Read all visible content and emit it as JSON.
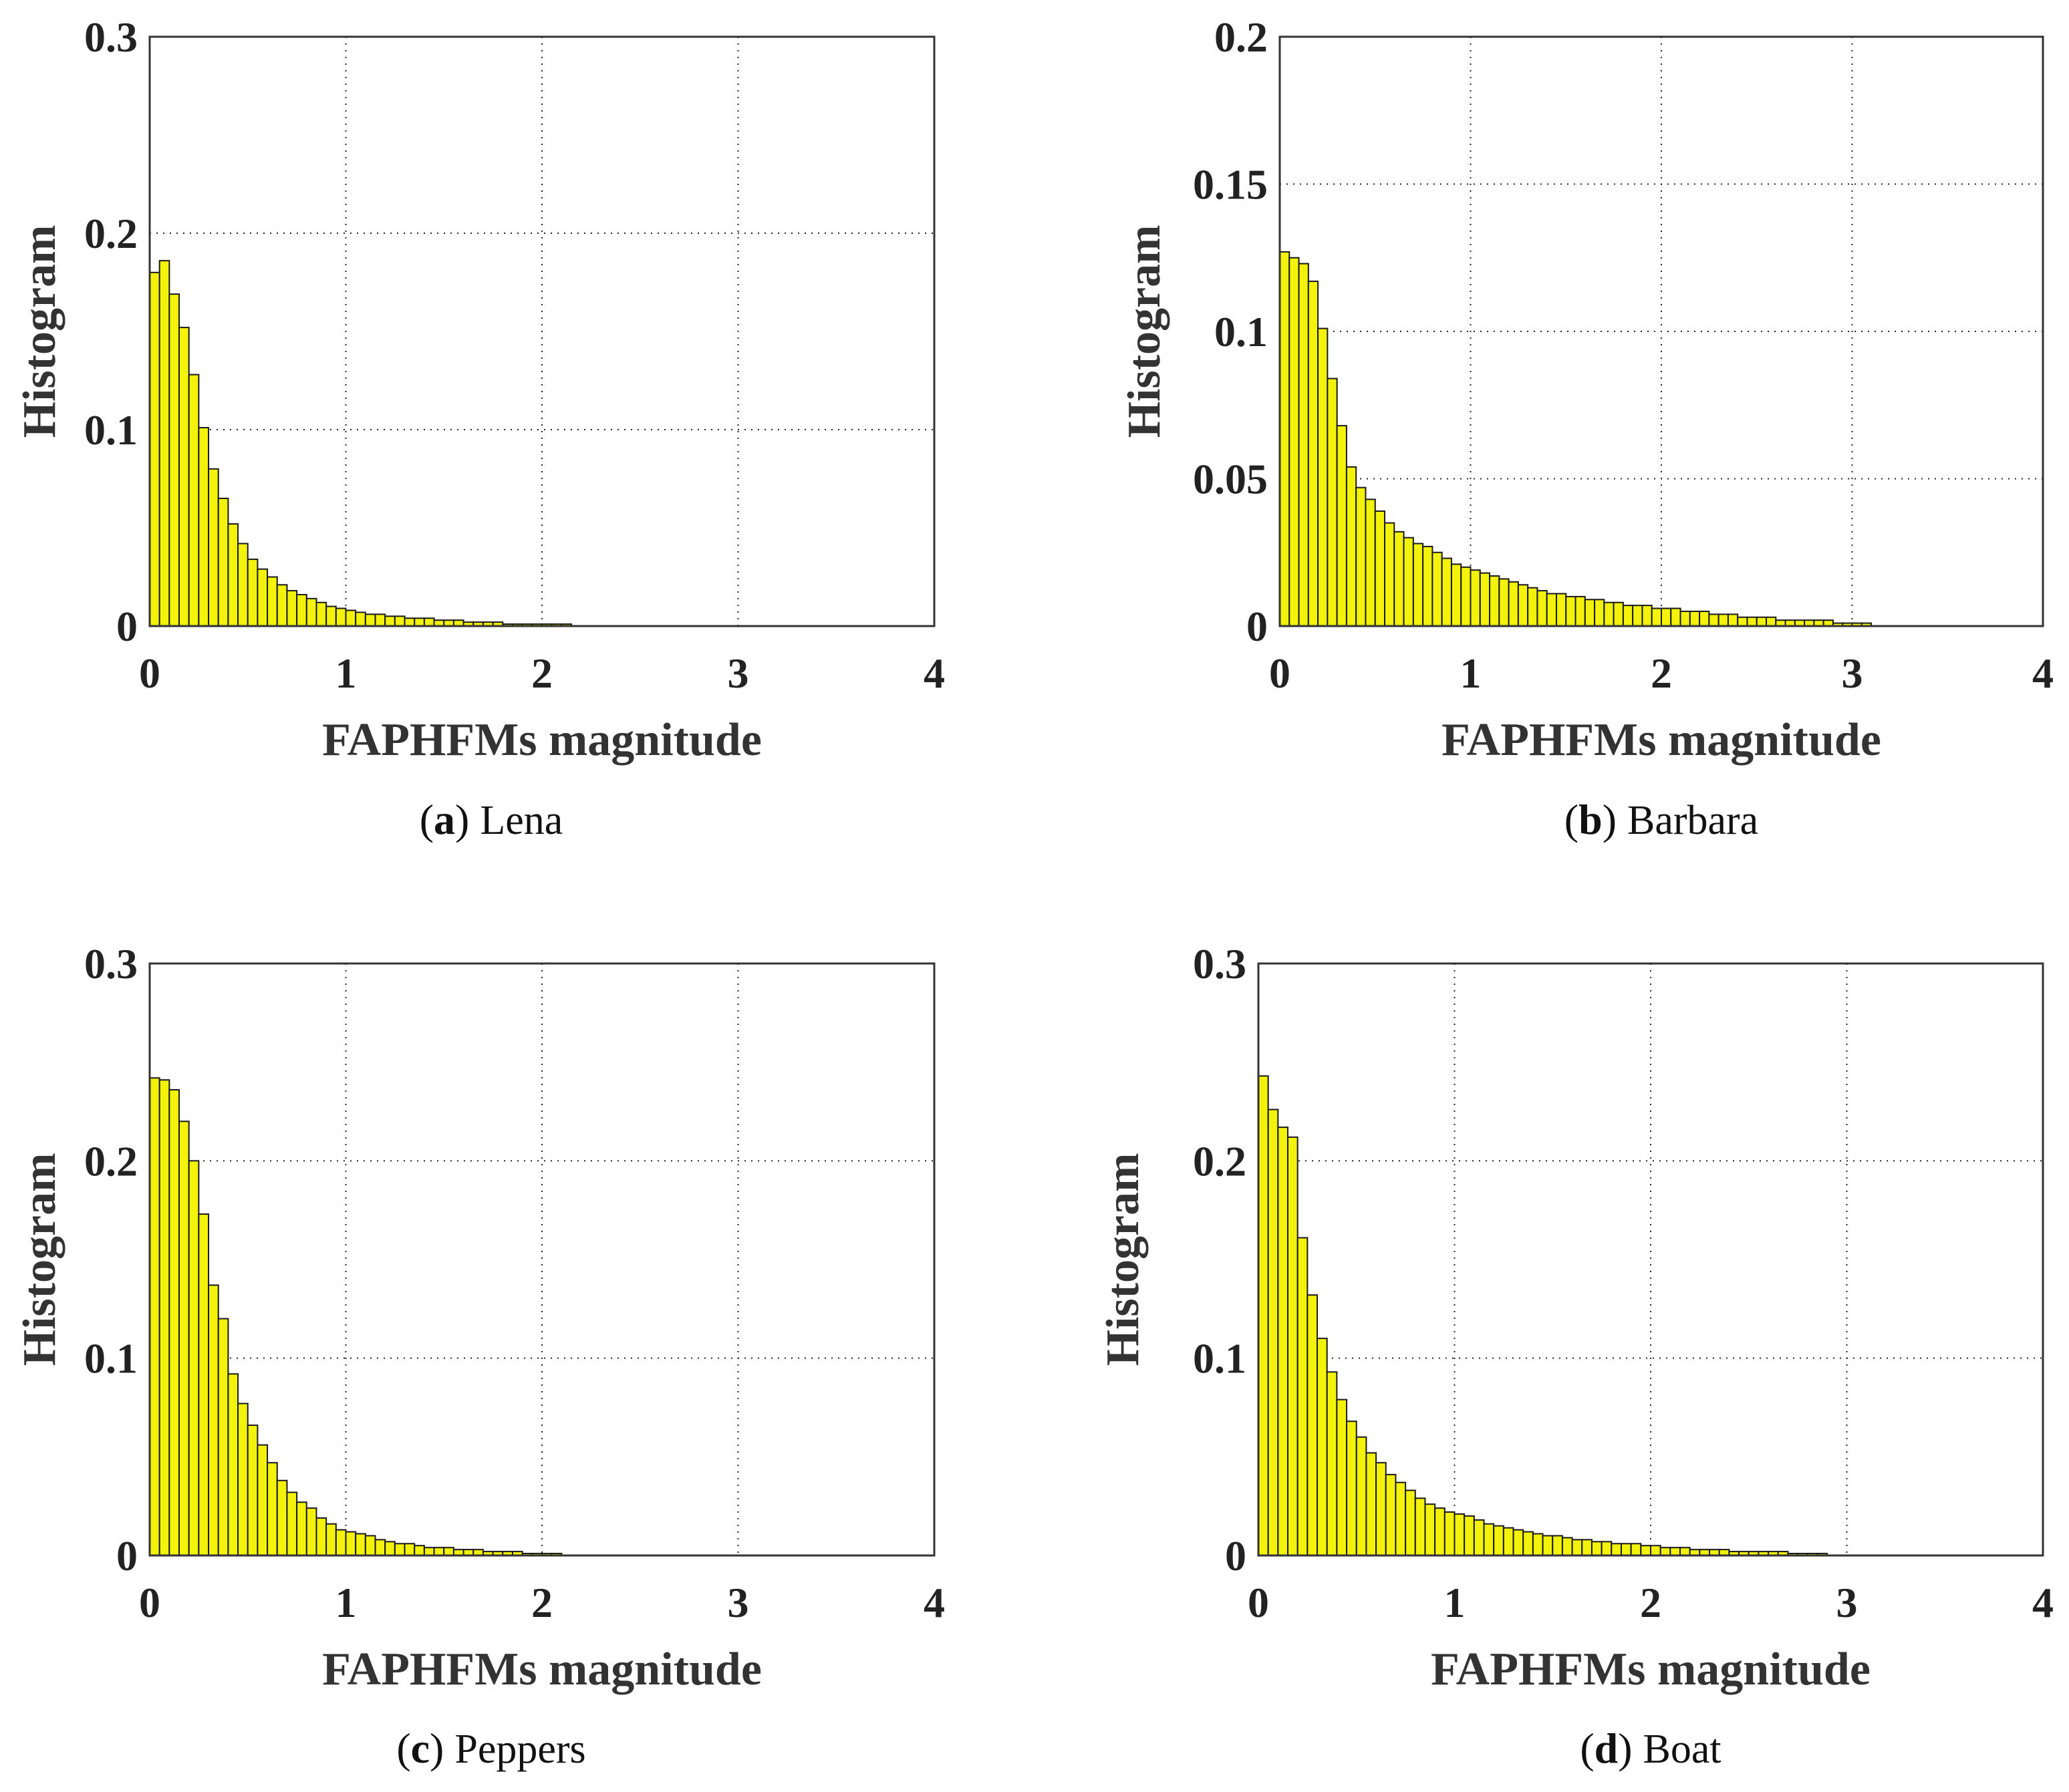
{
  "figure": {
    "colors": {
      "bar_fill": "#f2f20a",
      "bar_stroke": "#1a1a1a",
      "axis": "#333333",
      "grid": "#222222"
    }
  },
  "chart_data": [
    {
      "type": "bar",
      "panel": "a",
      "caption_letter": "a",
      "caption_name": "Lena",
      "xlabel": "FAPHFMs magnitude",
      "ylabel": "Histogram",
      "xlim": [
        0,
        4
      ],
      "ylim": [
        0,
        0.3
      ],
      "xticks": [
        "0",
        "1",
        "2",
        "3",
        "4"
      ],
      "yticks": [
        "0",
        "0.1",
        "0.2",
        "0.3"
      ],
      "ytick_values": [
        0,
        0.1,
        0.2,
        0.3
      ],
      "grid": true,
      "bin_width": 0.05,
      "values": [
        0.18,
        0.186,
        0.169,
        0.152,
        0.128,
        0.101,
        0.08,
        0.065,
        0.052,
        0.042,
        0.034,
        0.029,
        0.025,
        0.021,
        0.018,
        0.016,
        0.014,
        0.012,
        0.01,
        0.009,
        0.008,
        0.007,
        0.006,
        0.006,
        0.005,
        0.005,
        0.004,
        0.004,
        0.004,
        0.003,
        0.003,
        0.003,
        0.002,
        0.002,
        0.002,
        0.002,
        0.001,
        0.001,
        0.001,
        0.001,
        0.001,
        0.001,
        0.001
      ]
    },
    {
      "type": "bar",
      "panel": "b",
      "caption_letter": "b",
      "caption_name": "Barbara",
      "xlabel": "FAPHFMs magnitude",
      "ylabel": "Histogram",
      "xlim": [
        0,
        4
      ],
      "ylim": [
        0,
        0.2
      ],
      "xticks": [
        "0",
        "1",
        "2",
        "3",
        "4"
      ],
      "yticks": [
        "0",
        "0.05",
        "0.1",
        "0.15",
        "0.2"
      ],
      "ytick_values": [
        0,
        0.05,
        0.1,
        0.15,
        0.2
      ],
      "grid": true,
      "bin_width": 0.05,
      "values": [
        0.127,
        0.125,
        0.123,
        0.117,
        0.101,
        0.084,
        0.068,
        0.054,
        0.047,
        0.043,
        0.039,
        0.035,
        0.032,
        0.03,
        0.028,
        0.027,
        0.025,
        0.023,
        0.021,
        0.02,
        0.019,
        0.018,
        0.017,
        0.016,
        0.015,
        0.014,
        0.013,
        0.012,
        0.011,
        0.011,
        0.01,
        0.01,
        0.009,
        0.009,
        0.008,
        0.008,
        0.007,
        0.007,
        0.007,
        0.006,
        0.006,
        0.006,
        0.005,
        0.005,
        0.005,
        0.004,
        0.004,
        0.004,
        0.003,
        0.003,
        0.003,
        0.003,
        0.002,
        0.002,
        0.002,
        0.002,
        0.002,
        0.002,
        0.001,
        0.001,
        0.001,
        0.001
      ]
    },
    {
      "type": "bar",
      "panel": "c",
      "caption_letter": "c",
      "caption_name": "Peppers",
      "xlabel": "FAPHFMs magnitude",
      "ylabel": "Histogram",
      "xlim": [
        0,
        4
      ],
      "ylim": [
        0,
        0.3
      ],
      "xticks": [
        "0",
        "1",
        "2",
        "3",
        "4"
      ],
      "yticks": [
        "0",
        "0.1",
        "0.2",
        "0.3"
      ],
      "ytick_values": [
        0,
        0.1,
        0.2,
        0.3
      ],
      "grid": true,
      "bin_width": 0.05,
      "values": [
        0.242,
        0.241,
        0.236,
        0.22,
        0.2,
        0.173,
        0.137,
        0.12,
        0.092,
        0.077,
        0.066,
        0.056,
        0.047,
        0.038,
        0.032,
        0.027,
        0.024,
        0.019,
        0.016,
        0.013,
        0.012,
        0.011,
        0.01,
        0.008,
        0.007,
        0.006,
        0.006,
        0.005,
        0.004,
        0.004,
        0.004,
        0.003,
        0.003,
        0.003,
        0.002,
        0.002,
        0.002,
        0.002,
        0.001,
        0.001,
        0.001,
        0.001
      ]
    },
    {
      "type": "bar",
      "panel": "d",
      "caption_letter": "d",
      "caption_name": "Boat",
      "xlabel": "FAPHFMs magnitude",
      "ylabel": "Histogram",
      "xlim": [
        0,
        4
      ],
      "ylim": [
        0,
        0.3
      ],
      "xticks": [
        "0",
        "1",
        "2",
        "3",
        "4"
      ],
      "yticks": [
        "0",
        "0.1",
        "0.2",
        "0.3"
      ],
      "ytick_values": [
        0,
        0.1,
        0.2,
        0.3
      ],
      "grid": true,
      "bin_width": 0.05,
      "values": [
        0.243,
        0.226,
        0.217,
        0.212,
        0.161,
        0.132,
        0.11,
        0.093,
        0.079,
        0.068,
        0.06,
        0.052,
        0.047,
        0.041,
        0.037,
        0.033,
        0.029,
        0.026,
        0.024,
        0.022,
        0.021,
        0.02,
        0.018,
        0.016,
        0.015,
        0.014,
        0.013,
        0.012,
        0.011,
        0.01,
        0.01,
        0.009,
        0.008,
        0.008,
        0.007,
        0.007,
        0.006,
        0.006,
        0.006,
        0.005,
        0.005,
        0.004,
        0.004,
        0.004,
        0.003,
        0.003,
        0.003,
        0.003,
        0.002,
        0.002,
        0.002,
        0.002,
        0.002,
        0.002,
        0.001,
        0.001,
        0.001,
        0.001
      ]
    }
  ]
}
